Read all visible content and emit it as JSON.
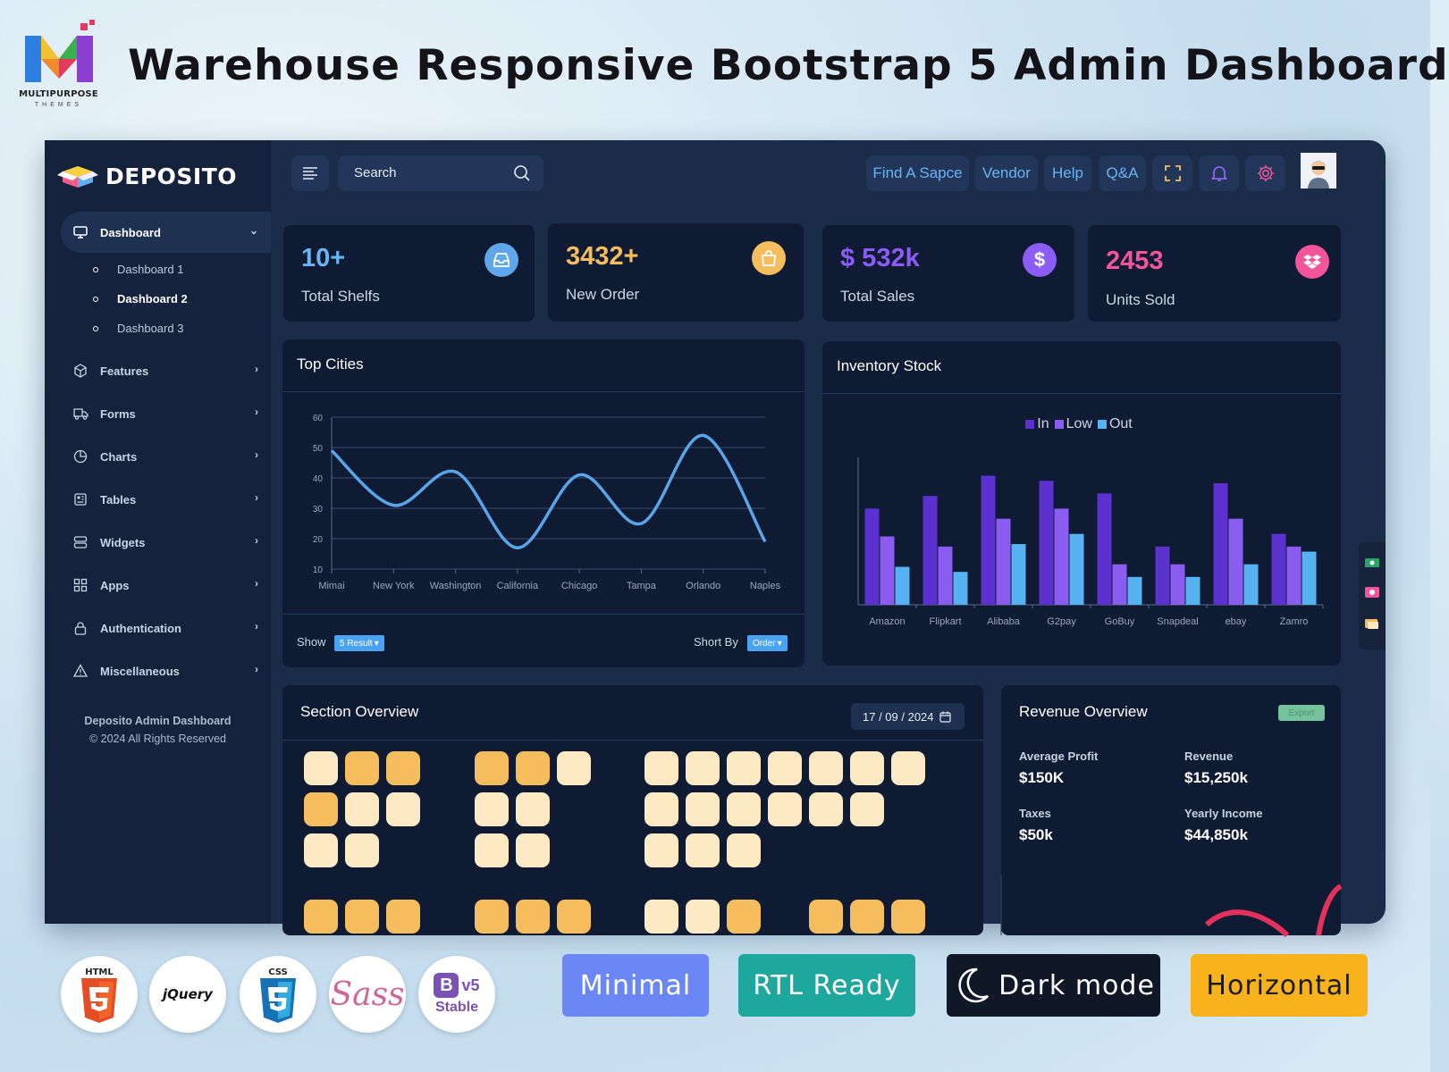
{
  "header": {
    "title": "Warehouse Responsive Bootstrap 5 Admin Dashboard",
    "logo_text": "MULTIPURPOSE",
    "logo_subtext": "THEMES"
  },
  "app": {
    "brand": "DEPOSITO",
    "sidebar": {
      "menu": [
        {
          "label": "Dashboard",
          "icon": "monitor-icon",
          "active": true
        },
        {
          "label": "Features",
          "icon": "box-icon"
        },
        {
          "label": "Forms",
          "icon": "truck-icon"
        },
        {
          "label": "Charts",
          "icon": "pie-chart-icon"
        },
        {
          "label": "Tables",
          "icon": "table-icon"
        },
        {
          "label": "Widgets",
          "icon": "server-icon"
        },
        {
          "label": "Apps",
          "icon": "grid-icon"
        },
        {
          "label": "Authentication",
          "icon": "lock-icon"
        },
        {
          "label": "Miscellaneous",
          "icon": "alert-triangle-icon"
        }
      ],
      "submenu": [
        "Dashboard 1",
        "Dashboard 2",
        "Dashboard 3"
      ],
      "active_submenu": "Dashboard 2",
      "footer_line1": "Deposito Admin Dashboard",
      "footer_line2": "© 2024 All Rights Reserved"
    },
    "topbar": {
      "search_placeholder": "Search",
      "links": [
        "Find A Sapce",
        "Vendor",
        "Help",
        "Q&A"
      ],
      "icons": [
        "expand-icon",
        "bell-icon",
        "settings-icon"
      ]
    },
    "stats": [
      {
        "value": "10+",
        "label": "Total Shelfs",
        "color": "#6ab4f3",
        "icon": "inbox-icon",
        "icon_bg": "#5fa7ea"
      },
      {
        "value": "3432+",
        "label": "New Order",
        "color": "#f6bd5e",
        "icon": "shopping-bag-icon",
        "icon_bg": "#f6bd5e"
      },
      {
        "value": "$ 532k",
        "label": "Total Sales",
        "color": "#8b5cf6",
        "icon": "dollar-icon",
        "icon_bg": "#8b5cf6"
      },
      {
        "value": "2453",
        "label": "Units Sold",
        "color": "#f2559a",
        "icon": "dropbox-icon",
        "icon_bg": "#f2559a"
      }
    ],
    "top_cities": {
      "title": "Top Cities",
      "show_label": "Show",
      "show_value": "5 Result",
      "sort_label": "Short By",
      "sort_value": "Order"
    },
    "inventory": {
      "title": "Inventory Stock"
    },
    "section_overview": {
      "title": "Section Overview",
      "date": "17 / 09 / 2024"
    },
    "revenue": {
      "title": "Revenue Overview",
      "export_label": "Export",
      "metrics": [
        {
          "label": "Average Profit",
          "value": "$150K"
        },
        {
          "label": "Revenue",
          "value": "$15,250k"
        },
        {
          "label": "Taxes",
          "value": "$50k"
        },
        {
          "label": "Yearly Income",
          "value": "$44,850k"
        }
      ]
    }
  },
  "tech_badges": [
    "HTML",
    "jQuery",
    "CSS",
    "Sass",
    "Stable"
  ],
  "feature_badges": [
    {
      "label": "Minimal",
      "bg": "#6b86f5",
      "fg": "#ffffff"
    },
    {
      "label": "RTL Ready",
      "bg": "#1ea79c",
      "fg": "#ffffff"
    },
    {
      "label": "Dark mode",
      "bg": "#101828",
      "fg": "#ffffff"
    },
    {
      "label": "Horizontal",
      "bg": "#f8b21b",
      "fg": "#1b1b1b"
    }
  ],
  "chart_data": [
    {
      "type": "line",
      "x": [
        "Mimai",
        "New York",
        "Washington",
        "California",
        "Chicago",
        "Tampa",
        "Orlando",
        "Naples"
      ],
      "series": [
        {
          "values": [
            49,
            31,
            42,
            17,
            41,
            25,
            54,
            19
          ]
        }
      ],
      "ylim": [
        10,
        60
      ],
      "yticks": [
        10,
        20,
        30,
        40,
        50,
        60
      ],
      "grid": true
    },
    {
      "type": "bar",
      "categories": [
        "Amazon",
        "Flipkart",
        "Alibaba",
        "G2pay",
        "GoBuy",
        "Snapdeal",
        "ebay",
        "Zamro"
      ],
      "series": [
        {
          "name": "In",
          "color": "#5b32d0",
          "values": [
            38,
            43,
            51,
            49,
            44,
            23,
            48,
            28
          ]
        },
        {
          "name": "Low",
          "color": "#8a5cf0",
          "values": [
            27,
            23,
            34,
            38,
            16,
            16,
            34,
            23
          ]
        },
        {
          "name": "Out",
          "color": "#56b2f0",
          "values": [
            15,
            13,
            24,
            28,
            11,
            11,
            16,
            21
          ]
        }
      ],
      "ylim": [
        0,
        60
      ],
      "legend": "top-center"
    }
  ]
}
